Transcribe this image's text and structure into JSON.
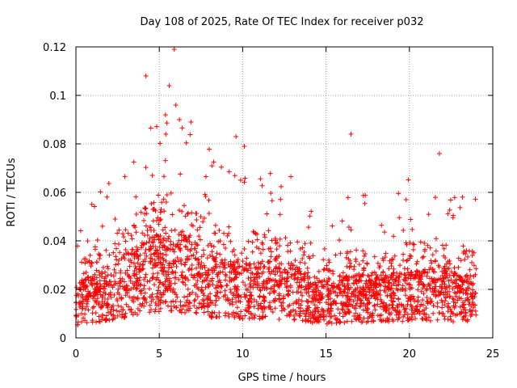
{
  "chart_data": {
    "type": "scatter",
    "title": "Day 108 of 2025, Rate Of TEC Index for receiver p032",
    "xlabel": "GPS time / hours",
    "ylabel": "ROTI / TECUs",
    "xlim": [
      0,
      25
    ],
    "ylim": [
      0,
      0.12
    ],
    "x_ticks": [
      0,
      5,
      10,
      15,
      20,
      25
    ],
    "x_tick_labels": [
      "0",
      "5",
      "10",
      "15",
      "20",
      "25"
    ],
    "y_ticks": [
      0,
      0.02,
      0.04,
      0.06,
      0.08,
      0.1,
      0.12
    ],
    "y_tick_labels": [
      "0",
      "0.02",
      "0.04",
      "0.06",
      "0.08",
      "0.1",
      "0.12"
    ],
    "grid": true,
    "marker": "plus",
    "color": "#ff0000",
    "x_range_of_data": [
      0,
      24
    ],
    "peak_points": [
      {
        "x": 4.2,
        "y": 0.108
      },
      {
        "x": 5.6,
        "y": 0.104
      },
      {
        "x": 5.9,
        "y": 0.119
      },
      {
        "x": 6.9,
        "y": 0.089
      },
      {
        "x": 9.6,
        "y": 0.083
      },
      {
        "x": 10.1,
        "y": 0.079
      },
      {
        "x": 16.5,
        "y": 0.084
      },
      {
        "x": 21.8,
        "y": 0.076
      }
    ],
    "density_profile": [
      {
        "x": 0.0,
        "y": 0.015
      },
      {
        "x": 1.0,
        "y": 0.018
      },
      {
        "x": 2.0,
        "y": 0.02
      },
      {
        "x": 3.0,
        "y": 0.024
      },
      {
        "x": 4.0,
        "y": 0.028
      },
      {
        "x": 5.0,
        "y": 0.03
      },
      {
        "x": 6.0,
        "y": 0.03
      },
      {
        "x": 7.0,
        "y": 0.028
      },
      {
        "x": 8.0,
        "y": 0.024
      },
      {
        "x": 9.0,
        "y": 0.022
      },
      {
        "x": 10.0,
        "y": 0.022
      },
      {
        "x": 11.0,
        "y": 0.022
      },
      {
        "x": 12.0,
        "y": 0.022
      },
      {
        "x": 13.0,
        "y": 0.021
      },
      {
        "x": 14.0,
        "y": 0.018
      },
      {
        "x": 15.0,
        "y": 0.016
      },
      {
        "x": 16.0,
        "y": 0.018
      },
      {
        "x": 17.0,
        "y": 0.018
      },
      {
        "x": 18.0,
        "y": 0.018
      },
      {
        "x": 19.0,
        "y": 0.018
      },
      {
        "x": 20.0,
        "y": 0.02
      },
      {
        "x": 21.0,
        "y": 0.02
      },
      {
        "x": 22.0,
        "y": 0.02
      },
      {
        "x": 23.0,
        "y": 0.018
      },
      {
        "x": 24.0,
        "y": 0.018
      }
    ]
  }
}
